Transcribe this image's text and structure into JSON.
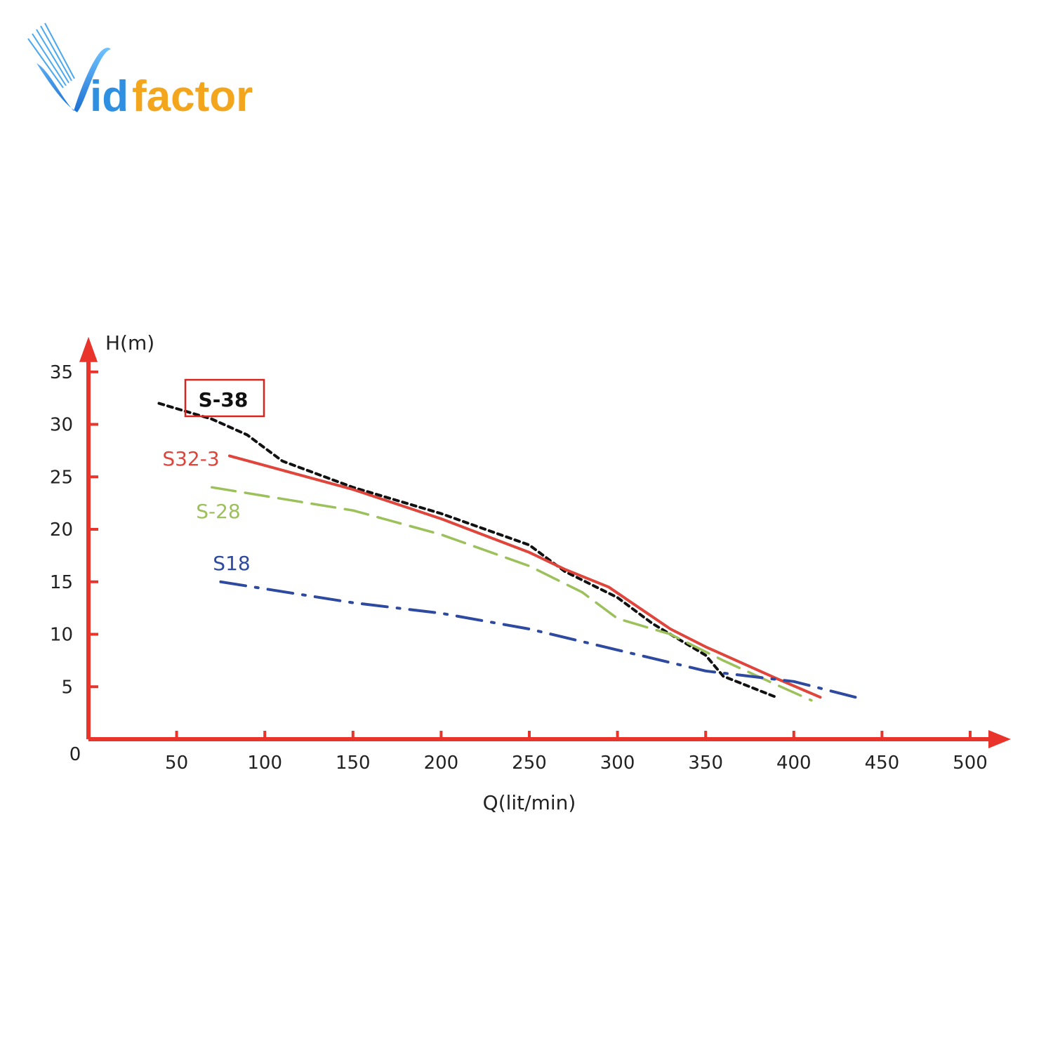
{
  "logo": {
    "text_part1": "id",
    "text_part2": "factor",
    "color_blue": "#2f8fe0",
    "color_orange": "#f3a51c"
  },
  "colors": {
    "axis": "#e8342b",
    "highlight_box": "#d9231f"
  },
  "chart_data": {
    "type": "line",
    "xlabel": "Q(lit/min)",
    "ylabel": "H(m)",
    "origin_label": "0",
    "xlim": [
      0,
      500
    ],
    "ylim": [
      0,
      35
    ],
    "x_ticks": [
      50,
      100,
      150,
      200,
      250,
      300,
      350,
      400,
      450,
      500
    ],
    "y_ticks": [
      5,
      10,
      15,
      20,
      25,
      30,
      35
    ],
    "grid": false,
    "series": [
      {
        "name": "S-38",
        "color": "#111111",
        "style": "dotted",
        "highlighted": true,
        "points": [
          [
            40,
            32
          ],
          [
            70,
            30.5
          ],
          [
            90,
            29
          ],
          [
            110,
            26.5
          ],
          [
            150,
            24
          ],
          [
            200,
            21.5
          ],
          [
            250,
            18.5
          ],
          [
            270,
            16
          ],
          [
            300,
            13.5
          ],
          [
            320,
            11
          ],
          [
            350,
            8
          ],
          [
            360,
            6
          ],
          [
            390,
            4
          ]
        ]
      },
      {
        "name": "S32-3",
        "color": "#e0453c",
        "style": "solid",
        "highlighted": false,
        "points": [
          [
            80,
            27
          ],
          [
            150,
            23.8
          ],
          [
            200,
            21
          ],
          [
            250,
            17.8
          ],
          [
            270,
            16.2
          ],
          [
            295,
            14.5
          ],
          [
            330,
            10.5
          ],
          [
            350,
            8.8
          ],
          [
            390,
            5.8
          ],
          [
            415,
            4
          ]
        ]
      },
      {
        "name": "S-28",
        "color": "#9cc05a",
        "style": "dashed",
        "highlighted": false,
        "points": [
          [
            70,
            24
          ],
          [
            150,
            21.8
          ],
          [
            200,
            19.5
          ],
          [
            250,
            16.5
          ],
          [
            280,
            14
          ],
          [
            300,
            11.5
          ],
          [
            330,
            10
          ],
          [
            360,
            7.5
          ],
          [
            390,
            5.2
          ],
          [
            410,
            3.7
          ]
        ]
      },
      {
        "name": "S18",
        "color": "#2e4aa0",
        "style": "dashdot",
        "highlighted": false,
        "points": [
          [
            75,
            15
          ],
          [
            150,
            13
          ],
          [
            200,
            12
          ],
          [
            250,
            10.5
          ],
          [
            300,
            8.5
          ],
          [
            350,
            6.5
          ],
          [
            400,
            5.5
          ],
          [
            435,
            4
          ]
        ]
      }
    ]
  }
}
